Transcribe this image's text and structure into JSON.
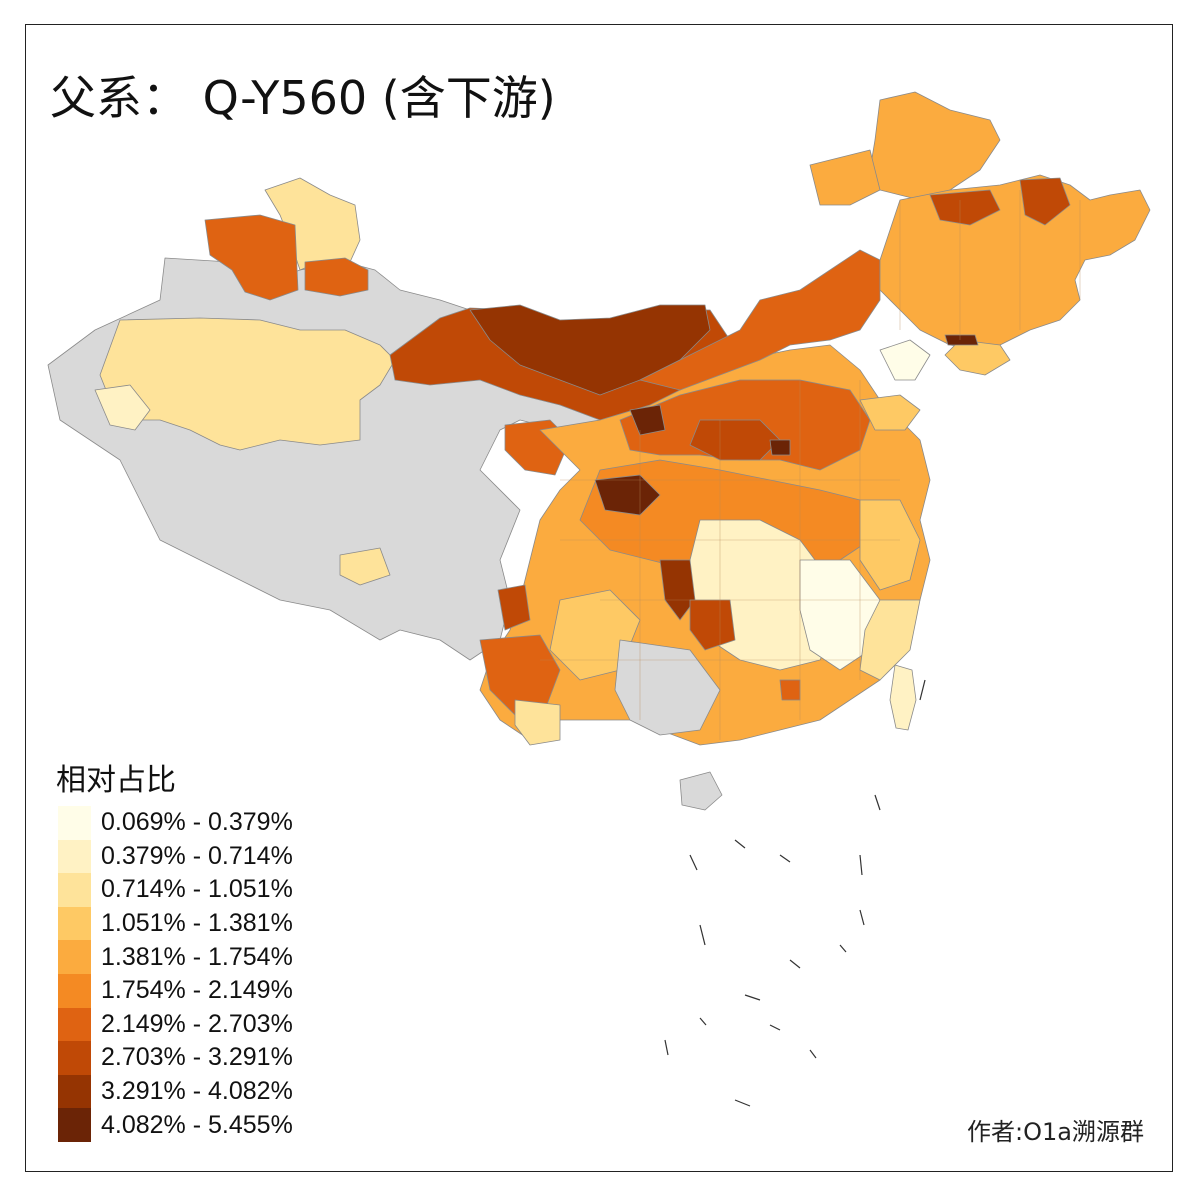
{
  "title": "父系： Q-Y560 (含下游)",
  "legend": {
    "title": "相对占比",
    "classes": [
      {
        "label": "0.069% - 0.379%",
        "color": "#fffde8"
      },
      {
        "label": "0.379% - 0.714%",
        "color": "#fff2c4"
      },
      {
        "label": "0.714% - 1.051%",
        "color": "#fee39a"
      },
      {
        "label": "1.051% - 1.381%",
        "color": "#fec964"
      },
      {
        "label": "1.381% - 1.754%",
        "color": "#fbab3f"
      },
      {
        "label": "1.754% - 2.149%",
        "color": "#f48a23"
      },
      {
        "label": "2.149% - 2.703%",
        "color": "#df6312"
      },
      {
        "label": "2.703% - 3.291%",
        "color": "#c04906"
      },
      {
        "label": "3.291% - 4.082%",
        "color": "#953402"
      },
      {
        "label": "4.082% - 5.455%",
        "color": "#6b2406"
      }
    ]
  },
  "no_data_color": "#d9d9d9",
  "credit": "作者:O1a溯源群"
}
